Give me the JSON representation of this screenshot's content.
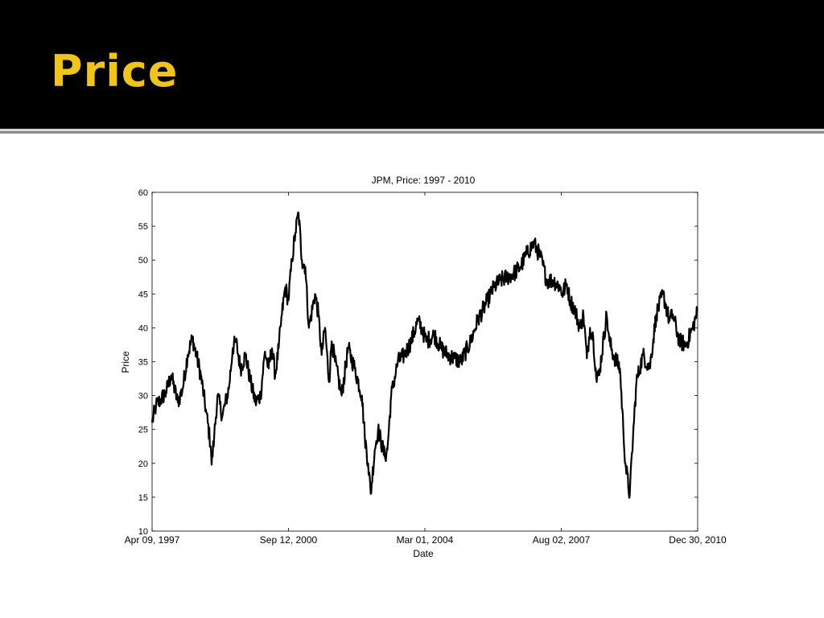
{
  "slide": {
    "title": "Price",
    "title_color": "#f0c419",
    "header_background": "#000000"
  },
  "chart_data": {
    "type": "line",
    "title": "JPM, Price: 1997 - 2010",
    "xlabel": "Date",
    "ylabel": "Price",
    "x_tick_labels": [
      "Apr 09, 1997",
      "Sep 12, 2000",
      "Mar 01, 2004",
      "Aug 02, 2007",
      "Dec 30, 2010"
    ],
    "xlim": [
      "1997-04-09",
      "2010-12-30"
    ],
    "ylim": [
      10,
      60
    ],
    "y_ticks": [
      10,
      15,
      20,
      25,
      30,
      35,
      40,
      45,
      50,
      55,
      60
    ],
    "grid": false,
    "line_color": "#000000",
    "series": [
      {
        "x": [
          "1997-04-09",
          "1997-05-15",
          "1997-07-01",
          "1997-08-15",
          "1997-10-01",
          "1997-12-01",
          "1998-01-15",
          "1998-03-01",
          "1998-04-15",
          "1998-05-20",
          "1998-07-01",
          "1998-08-15",
          "1998-10-01",
          "1998-10-08",
          "1998-11-01",
          "1998-12-01",
          "1999-01-15",
          "1999-03-15",
          "1999-04-20",
          "1999-05-20",
          "1999-07-01",
          "1999-08-15",
          "1999-10-01",
          "1999-11-15",
          "2000-01-01",
          "2000-02-10",
          "2000-03-15",
          "2000-04-15",
          "2000-05-15",
          "2000-06-15",
          "2000-07-15",
          "2000-08-15",
          "2000-09-12",
          "2000-10-15",
          "2000-11-15",
          "2000-12-15",
          "2001-01-15",
          "2001-02-15",
          "2001-03-20",
          "2001-05-15",
          "2001-06-15",
          "2001-07-15",
          "2001-08-15",
          "2001-09-21",
          "2001-10-15",
          "2001-11-15",
          "2002-01-15",
          "2002-03-15",
          "2002-05-15",
          "2002-07-20",
          "2002-08-15",
          "2002-09-15",
          "2002-10-09",
          "2002-11-15",
          "2002-12-15",
          "2003-02-15",
          "2003-03-11",
          "2003-04-15",
          "2003-06-15",
          "2003-08-15",
          "2003-10-15",
          "2003-12-15",
          "2004-01-20",
          "2004-03-01",
          "2004-05-15",
          "2004-07-15",
          "2004-09-15",
          "2004-11-15",
          "2005-01-15",
          "2005-04-15",
          "2005-06-15",
          "2005-09-15",
          "2005-11-15",
          "2006-01-15",
          "2006-03-15",
          "2006-05-15",
          "2006-07-15",
          "2006-09-15",
          "2006-11-15",
          "2007-01-15",
          "2007-03-15",
          "2007-05-15",
          "2007-07-15",
          "2007-08-02",
          "2007-09-15",
          "2007-10-15",
          "2007-11-20",
          "2008-01-15",
          "2008-02-15",
          "2008-03-17",
          "2008-04-15",
          "2008-05-15",
          "2008-06-15",
          "2008-07-15",
          "2008-09-15",
          "2008-10-10",
          "2008-11-15",
          "2009-01-15",
          "2009-02-15",
          "2009-03-06",
          "2009-04-15",
          "2009-05-15",
          "2009-06-15",
          "2009-08-15",
          "2009-10-15",
          "2009-12-15",
          "2010-02-15",
          "2010-04-15",
          "2010-05-15",
          "2010-07-15",
          "2010-09-15",
          "2010-11-15",
          "2010-12-30"
        ],
        "y": [
          26,
          28.5,
          29.5,
          30.5,
          33,
          29,
          31,
          36,
          38.5,
          36,
          33,
          28,
          22.5,
          19.8,
          24,
          30,
          27,
          31,
          37,
          38,
          34,
          36,
          32,
          29,
          30,
          36.5,
          34,
          37,
          33,
          37,
          42,
          46,
          44,
          50,
          54,
          57,
          50,
          49,
          40,
          45,
          42,
          36,
          40,
          32,
          38,
          35,
          30,
          37,
          34,
          30,
          24,
          20,
          15.5,
          22,
          25,
          21,
          22,
          30,
          35,
          36,
          38,
          41,
          40,
          38,
          39,
          37,
          36,
          35.5,
          35,
          38,
          41,
          44,
          46,
          47,
          47.5,
          48,
          49,
          51,
          52.5,
          50.5,
          47,
          47,
          46,
          45,
          46.5,
          44,
          43,
          40,
          42,
          35.5,
          40,
          38.5,
          32,
          34,
          42,
          38,
          36,
          34,
          25,
          20,
          15.3,
          24,
          32,
          36,
          34,
          42,
          45,
          41,
          42,
          38,
          37.5,
          40,
          42.5
        ]
      }
    ]
  }
}
